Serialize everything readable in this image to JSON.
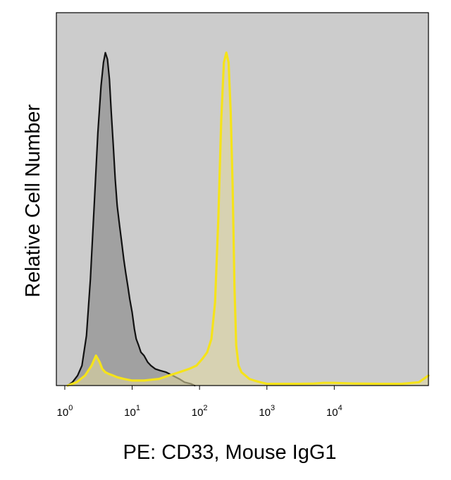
{
  "chart_data": {
    "type": "area",
    "title": "",
    "xlabel": "PE: CD33, Mouse IgG1",
    "ylabel": "Relative Cell Number",
    "x_scale": "log",
    "xlim": [
      0.75,
      250000
    ],
    "ylim": [
      0,
      1.12
    ],
    "grid": false,
    "legend": "none",
    "x_ticks": [
      {
        "value": 1,
        "base": "10",
        "exp": "0"
      },
      {
        "value": 10,
        "base": "10",
        "exp": "1"
      },
      {
        "value": 100,
        "base": "10",
        "exp": "2"
      },
      {
        "value": 1000,
        "base": "10",
        "exp": "3"
      },
      {
        "value": 10000,
        "base": "10",
        "exp": "4"
      }
    ],
    "colors": {
      "plot_background": "#cccccc",
      "isotype_fill": "#999999",
      "isotype_line": "#111111",
      "stained_fill": "#ddd6a0",
      "stained_line": "#f5e31a"
    },
    "series": [
      {
        "x": [
          1.1,
          1.3,
          1.55,
          1.8,
          2.1,
          2.4,
          2.75,
          3.1,
          3.45,
          3.75,
          4.0,
          4.3,
          4.6,
          4.9,
          5.25,
          5.6,
          6.0,
          6.5,
          7.0,
          7.5,
          8.0,
          8.6,
          9.2,
          10.0,
          10.8,
          11.5,
          12.5,
          13.5,
          15.0,
          17.0,
          19.0,
          22.0,
          26.0,
          32.0,
          40.0,
          50.0,
          60.0,
          75.0,
          85.0
        ],
        "y": [
          0.0,
          0.01,
          0.03,
          0.06,
          0.15,
          0.32,
          0.55,
          0.76,
          0.9,
          0.97,
          1.0,
          0.98,
          0.92,
          0.82,
          0.72,
          0.62,
          0.54,
          0.48,
          0.43,
          0.38,
          0.34,
          0.3,
          0.26,
          0.22,
          0.17,
          0.14,
          0.12,
          0.1,
          0.09,
          0.07,
          0.06,
          0.05,
          0.045,
          0.04,
          0.03,
          0.02,
          0.01,
          0.005,
          0.0
        ]
      },
      {
        "x": [
          1.1,
          1.5,
          2.0,
          2.5,
          2.9,
          3.3,
          3.6,
          4.0,
          4.5,
          5.2,
          6.0,
          7.5,
          10.0,
          15.0,
          25.0,
          35.0,
          50.0,
          70.0,
          90.0,
          110.0,
          130.0,
          150.0,
          170.0,
          190.0,
          210.0,
          230.0,
          250.0,
          270.0,
          290.0,
          310.0,
          330.0,
          350.0,
          380.0,
          420.0,
          480.0,
          550.0,
          650.0,
          800.0,
          1000.0,
          1500.0,
          2000.0,
          3000.0,
          5000.0,
          7000.0,
          10000.0,
          20000.0,
          50000.0,
          100000.0,
          180000.0,
          250000.0
        ],
        "y": [
          0.0,
          0.01,
          0.03,
          0.06,
          0.09,
          0.07,
          0.05,
          0.04,
          0.035,
          0.03,
          0.025,
          0.02,
          0.015,
          0.015,
          0.02,
          0.03,
          0.04,
          0.05,
          0.06,
          0.08,
          0.1,
          0.14,
          0.25,
          0.5,
          0.8,
          0.97,
          1.0,
          0.97,
          0.82,
          0.6,
          0.3,
          0.12,
          0.06,
          0.04,
          0.03,
          0.02,
          0.015,
          0.01,
          0.005,
          0.005,
          0.005,
          0.005,
          0.006,
          0.008,
          0.008,
          0.006,
          0.005,
          0.005,
          0.01,
          0.03
        ]
      }
    ]
  }
}
